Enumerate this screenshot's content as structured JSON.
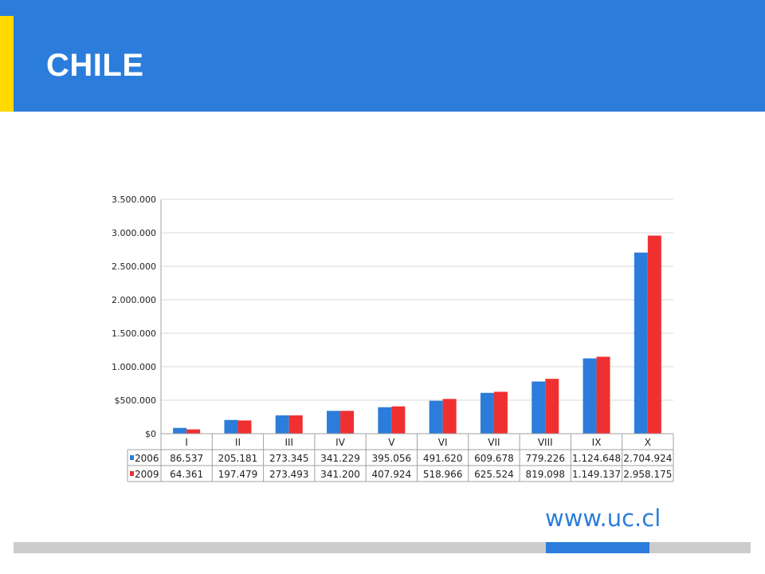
{
  "header": {
    "title": "CHILE"
  },
  "footer": {
    "website": "www.uc.cl"
  },
  "colors": {
    "header_bg": "#2c7ddb",
    "accent": "#ffd900",
    "series_2006": "#2c7ddb",
    "series_2009": "#f03030",
    "bottom_bar": "#cccccc"
  },
  "chart_data": {
    "type": "bar",
    "title": "",
    "xlabel": "",
    "ylabel": "",
    "categories": [
      "I",
      "II",
      "III",
      "IV",
      "V",
      "VI",
      "VII",
      "VIII",
      "IX",
      "X"
    ],
    "series": [
      {
        "name": "2006",
        "values": [
          86537,
          205181,
          273345,
          341229,
          395056,
          491620,
          609678,
          779226,
          1124648,
          2704924
        ],
        "labels": [
          "86.537",
          "205.181",
          "273.345",
          "341.229",
          "395.056",
          "491.620",
          "609.678",
          "779.226",
          "1.124.648",
          "2.704.924"
        ]
      },
      {
        "name": "2009",
        "values": [
          64361,
          197479,
          273493,
          341200,
          407924,
          518966,
          625524,
          819098,
          1149137,
          2958175
        ],
        "labels": [
          "64.361",
          "197.479",
          "273.493",
          "341.200",
          "407.924",
          "518.966",
          "625.524",
          "819.098",
          "1.149.137",
          "2.958.175"
        ]
      }
    ],
    "ylim": [
      0,
      3500000
    ],
    "yticks": [
      0,
      500000,
      1000000,
      1500000,
      2000000,
      2500000,
      3000000,
      3500000
    ],
    "ytick_labels": [
      "$0",
      "$500.000",
      "1.000.000",
      "1.500.000",
      "2.000.000",
      "2.500.000",
      "3.000.000",
      "3.500.000"
    ],
    "grid": true,
    "legend": "data-table"
  }
}
